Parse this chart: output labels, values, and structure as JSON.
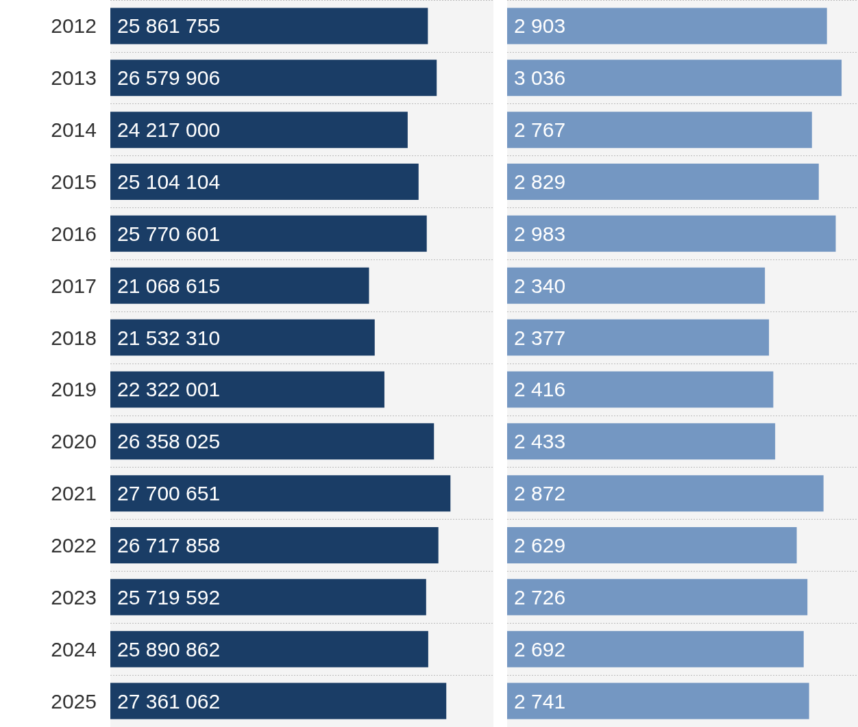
{
  "chart_data": [
    {
      "type": "bar",
      "orientation": "horizontal",
      "categories": [
        "2012",
        "2013",
        "2014",
        "2015",
        "2016",
        "2017",
        "2018",
        "2019",
        "2020",
        "2021",
        "2022",
        "2023",
        "2024",
        "2025"
      ],
      "values": [
        25861755,
        26579906,
        24217000,
        25104104,
        25770601,
        21068615,
        21532310,
        22322001,
        26358025,
        27700651,
        26717858,
        25719592,
        25890862,
        27361062
      ],
      "value_labels": [
        "25 861 755",
        "26 579 906",
        "24 217 000",
        "25 104 104",
        "25 770 601",
        "21 068 615",
        "21 532 310",
        "22 322 001",
        "26 358 025",
        "27 700 651",
        "26 717 858",
        "25 719 592",
        "25 890 862",
        "27 361 062"
      ],
      "color": "#1a3d66",
      "xlim": [
        0,
        31200000
      ],
      "bands": [
        {
          "axis": "x",
          "from": 0,
          "to": 31200000,
          "color": "#f4f4f4"
        }
      ],
      "grid": "y",
      "tick_labels": "y"
    },
    {
      "type": "bar",
      "orientation": "horizontal",
      "categories": [
        "2012",
        "2013",
        "2014",
        "2015",
        "2016",
        "2017",
        "2018",
        "2019",
        "2020",
        "2021",
        "2022",
        "2023",
        "2024",
        "2025"
      ],
      "values": [
        2903,
        3036,
        2767,
        2829,
        2983,
        2340,
        2377,
        2416,
        2433,
        2872,
        2629,
        2726,
        2692,
        2741
      ],
      "value_labels": [
        "2 903",
        "3 036",
        "2 767",
        "2 829",
        "2 983",
        "2 340",
        "2 377",
        "2 416",
        "2 433",
        "2 872",
        "2 629",
        "2 726",
        "2 692",
        "2 741"
      ],
      "color": "#7497c2",
      "xlim": [
        0,
        3185
      ],
      "bands": [
        {
          "axis": "x",
          "from": 0,
          "to": 3185,
          "color": "#f4f4f4"
        }
      ],
      "grid": "y",
      "tick_labels": false
    }
  ]
}
